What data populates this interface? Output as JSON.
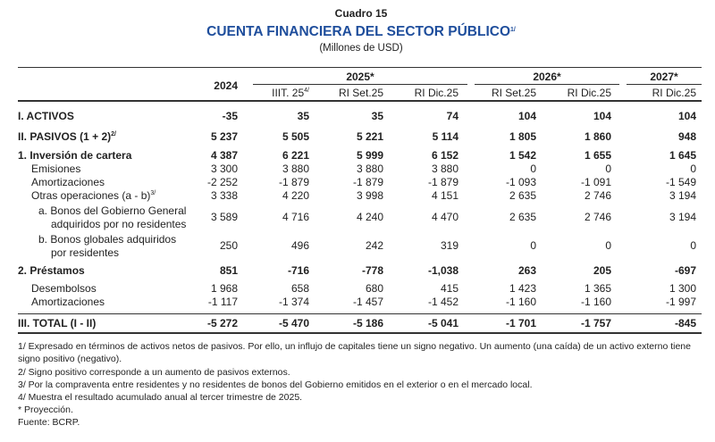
{
  "header": {
    "caption": "Cuadro 15",
    "title": "CUENTA FINANCIERA DEL SECTOR PÚBLICO",
    "title_note": "1/",
    "subtitle": "(Millones de USD)"
  },
  "table": {
    "first_year": "2024",
    "groups": [
      {
        "year": "2025*",
        "columns": [
          {
            "label": "IIIT. 25",
            "note": "4/"
          },
          {
            "label": "RI Set.25"
          },
          {
            "label": "RI Dic.25"
          }
        ]
      },
      {
        "year": "2026*",
        "columns": [
          {
            "label": "RI Set.25"
          },
          {
            "label": "RI Dic.25"
          }
        ]
      },
      {
        "year": "2027*",
        "columns": [
          {
            "label": "RI Dic.25"
          }
        ]
      }
    ],
    "rows": [
      {
        "label": [
          "I. ACTIVOS"
        ],
        "values": [
          "-35",
          "35",
          "35",
          "74",
          "104",
          "104",
          "104"
        ]
      },
      {
        "label": [
          "II. PASIVOS (1 + 2)"
        ],
        "note": "2/",
        "values": [
          "5 237",
          "5 505",
          "5 221",
          "5 114",
          "1 805",
          "1 860",
          "948"
        ]
      },
      {
        "label": [
          "1. Inversión de cartera"
        ],
        "values": [
          "4 387",
          "6 221",
          "5 999",
          "6 152",
          "1 542",
          "1 655",
          "1 645"
        ]
      },
      {
        "label": [
          "Emisiones"
        ],
        "values": [
          "3 300",
          "3 880",
          "3 880",
          "3 880",
          "0",
          "0",
          "0"
        ]
      },
      {
        "label": [
          "Amortizaciones"
        ],
        "values": [
          "-2 252",
          "-1 879",
          "-1 879",
          "-1 879",
          "-1 093",
          "-1 091",
          "-1 549"
        ]
      },
      {
        "label": [
          "Otras operaciones (a - b)"
        ],
        "note": "3/",
        "values": [
          "3 338",
          "4 220",
          "3 998",
          "4 151",
          "2 635",
          "2 746",
          "3 194"
        ]
      },
      {
        "label": [
          "a. Bonos del Gobierno General",
          "adquiridos por no residentes"
        ],
        "values": [
          "3 589",
          "4 716",
          "4 240",
          "4 470",
          "2 635",
          "2 746",
          "3 194"
        ]
      },
      {
        "label": [
          "b. Bonos globales adquiridos",
          "por residentes"
        ],
        "values": [
          "250",
          "496",
          "242",
          "319",
          "0",
          "0",
          "0"
        ]
      },
      {
        "label": [
          "2. Préstamos"
        ],
        "values": [
          "851",
          "-716",
          "-778",
          "-1,038",
          "263",
          "205",
          "-697"
        ]
      },
      {
        "label": [
          "Desembolsos"
        ],
        "values": [
          "1 968",
          "658",
          "680",
          "415",
          "1 423",
          "1 365",
          "1 300"
        ]
      },
      {
        "label": [
          "Amortizaciones"
        ],
        "values": [
          "-1 117",
          "-1 374",
          "-1 457",
          "-1 452",
          "-1 160",
          "-1 160",
          "-1 997"
        ]
      },
      {
        "label": [
          "III. TOTAL (I - II)"
        ],
        "values": [
          "-5 272",
          "-5 470",
          "-5 186",
          "-5 041",
          "-1 701",
          "-1 757",
          "-845"
        ]
      }
    ]
  },
  "footnotes": [
    "1/ Expresado en términos de activos netos de pasivos. Por ello, un influjo de capitales tiene un signo negativo. Un aumento (una caída) de un activo externo tiene signo positivo (negativo).",
    "2/ Signo positivo corresponde a un aumento de pasivos externos.",
    "3/ Por la compraventa entre residentes y no residentes de bonos del Gobierno emitidos en el exterior o en el mercado local.",
    "4/ Muestra el resultado acumulado anual al tercer trimestre de 2025.",
    "* Proyección.",
    "Fuente: BCRP."
  ]
}
